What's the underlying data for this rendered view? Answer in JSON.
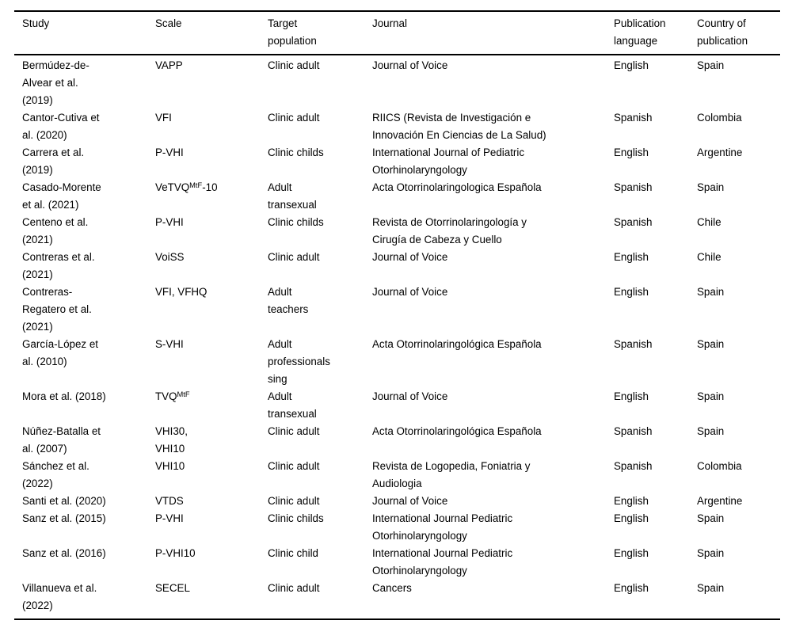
{
  "page": {
    "background": "#ffffff",
    "text_color": "#000000",
    "rule_color": "#000000"
  },
  "table": {
    "columns": [
      {
        "id": "study",
        "label": "Study",
        "label_lines": [
          "Study"
        ]
      },
      {
        "id": "scale",
        "label": "Scale",
        "label_lines": [
          "Scale"
        ]
      },
      {
        "id": "population",
        "label": "Target population",
        "label_lines": [
          "Target",
          "population"
        ]
      },
      {
        "id": "journal",
        "label": "Journal",
        "label_lines": [
          "Journal"
        ]
      },
      {
        "id": "language",
        "label": "Publication language",
        "label_lines": [
          "Publication",
          "language"
        ]
      },
      {
        "id": "country",
        "label": "Country of publication",
        "label_lines": [
          "Country of",
          "publication"
        ]
      }
    ],
    "rows": [
      {
        "study": [
          "Bermúdez-de-",
          "Alvear et al.",
          "(2019)"
        ],
        "scale": [
          [
            {
              "t": "VAPP"
            }
          ]
        ],
        "population": [
          "Clinic adult"
        ],
        "journal": [
          "Journal of Voice"
        ],
        "language": "English",
        "country": "Spain"
      },
      {
        "study": [
          "Cantor-Cutiva et",
          "al. (2020)"
        ],
        "scale": [
          [
            {
              "t": "VFI"
            }
          ]
        ],
        "population": [
          "Clinic adult"
        ],
        "journal": [
          "RIICS (Revista de Investigación e",
          "Innovación En Ciencias de La Salud)"
        ],
        "language": "Spanish",
        "country": "Colombia"
      },
      {
        "study": [
          "Carrera et al.",
          "(2019)"
        ],
        "scale": [
          [
            {
              "t": "P-VHI"
            }
          ]
        ],
        "population": [
          "Clinic childs"
        ],
        "journal": [
          "International Journal of Pediatric",
          "Otorhinolaryngology"
        ],
        "language": "English",
        "country": "Argentine"
      },
      {
        "study": [
          "Casado-Morente",
          "et al. (2021)"
        ],
        "scale": [
          [
            {
              "t": "VeTVQ"
            },
            {
              "t": "MtF",
              "sup": true
            },
            {
              "t": "-10"
            }
          ]
        ],
        "population": [
          "Adult",
          "transexual"
        ],
        "journal": [
          "Acta Otorrinolaringologica Española"
        ],
        "language": "Spanish",
        "country": "Spain"
      },
      {
        "study": [
          "Centeno et al.",
          "(2021)"
        ],
        "scale": [
          [
            {
              "t": "P-VHI"
            }
          ]
        ],
        "population": [
          "Clinic childs"
        ],
        "journal": [
          "Revista de Otorrinolaringología y",
          "Cirugía de Cabeza y Cuello"
        ],
        "language": "Spanish",
        "country": "Chile"
      },
      {
        "study": [
          "Contreras et al.",
          "(2021)"
        ],
        "scale": [
          [
            {
              "t": "VoiSS"
            }
          ]
        ],
        "population": [
          "Clinic adult"
        ],
        "journal": [
          "Journal of Voice"
        ],
        "language": "English",
        "country": "Chile"
      },
      {
        "study": [
          "Contreras-",
          "Regatero et al.",
          "(2021)"
        ],
        "scale": [
          [
            {
              "t": "VFI, VFHQ"
            }
          ]
        ],
        "population": [
          "Adult",
          "teachers"
        ],
        "journal": [
          "Journal of Voice"
        ],
        "language": "English",
        "country": "Spain"
      },
      {
        "study": [
          "García-López et",
          "al. (2010)"
        ],
        "scale": [
          [
            {
              "t": "S-VHI"
            }
          ]
        ],
        "population": [
          "Adult",
          "professionals",
          "sing"
        ],
        "journal": [
          "Acta Otorrinolaringológica Española"
        ],
        "language": "Spanish",
        "country": "Spain"
      },
      {
        "study": [
          "Mora et al. (2018)"
        ],
        "scale": [
          [
            {
              "t": "TVQ"
            },
            {
              "t": "MtF",
              "sup": true
            }
          ]
        ],
        "population": [
          "Adult",
          "transexual"
        ],
        "journal": [
          "Journal of Voice"
        ],
        "language": "English",
        "country": "Spain"
      },
      {
        "study": [
          "Núñez-Batalla et",
          "al. (2007)"
        ],
        "scale": [
          [
            {
              "t": "VHI30,"
            }
          ],
          [
            {
              "t": "VHI10"
            }
          ]
        ],
        "population": [
          "Clinic adult"
        ],
        "journal": [
          "Acta Otorrinolaringológica Española"
        ],
        "language": "Spanish",
        "country": "Spain"
      },
      {
        "study": [
          "Sánchez et al.",
          "(2022)"
        ],
        "scale": [
          [
            {
              "t": "VHI10"
            }
          ]
        ],
        "population": [
          "Clinic adult"
        ],
        "journal": [
          "Revista de Logopedia, Foniatria y",
          "Audiologia"
        ],
        "language": "Spanish",
        "country": "Colombia"
      },
      {
        "study": [
          "Santi et al. (2020)"
        ],
        "scale": [
          [
            {
              "t": "VTDS"
            }
          ]
        ],
        "population": [
          "Clinic adult"
        ],
        "journal": [
          "Journal of Voice"
        ],
        "language": "English",
        "country": "Argentine"
      },
      {
        "study": [
          "Sanz et al. (2015)"
        ],
        "scale": [
          [
            {
              "t": "P-VHI"
            }
          ]
        ],
        "population": [
          "Clinic childs"
        ],
        "journal": [
          "International Journal Pediatric",
          "Otorhinolaryngology"
        ],
        "language": "English",
        "country": "Spain"
      },
      {
        "study": [
          "Sanz et al. (2016)"
        ],
        "scale": [
          [
            {
              "t": "P-VHI10"
            }
          ]
        ],
        "population": [
          "Clinic child"
        ],
        "journal": [
          "International Journal Pediatric",
          "Otorhinolaryngology"
        ],
        "language": "English",
        "country": "Spain"
      },
      {
        "study": [
          "Villanueva et al.",
          "(2022)"
        ],
        "scale": [
          [
            {
              "t": "SECEL"
            }
          ]
        ],
        "population": [
          "Clinic adult"
        ],
        "journal": [
          "Cancers"
        ],
        "language": "English",
        "country": "Spain"
      }
    ]
  }
}
